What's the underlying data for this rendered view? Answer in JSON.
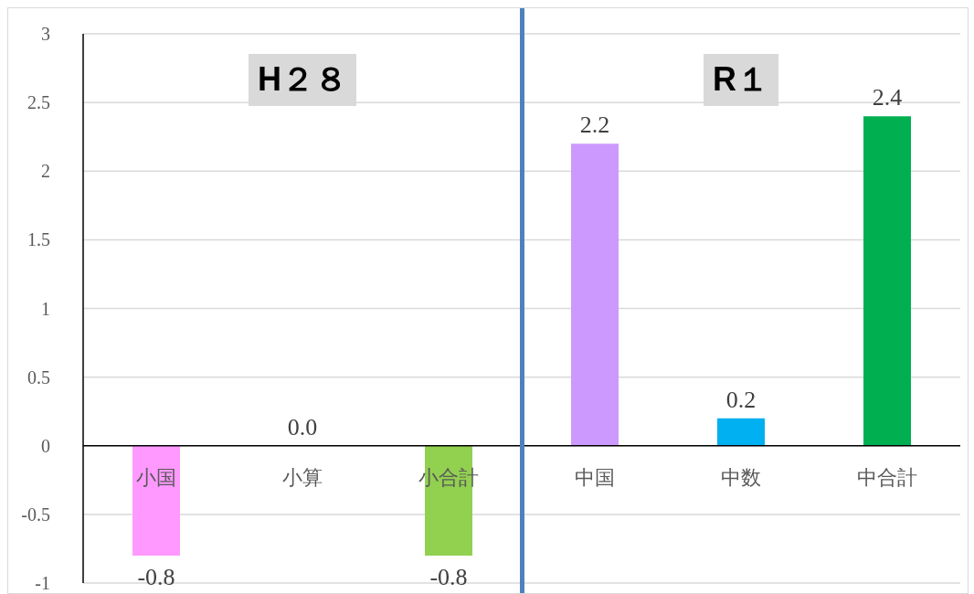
{
  "chart_data": {
    "type": "bar",
    "categories": [
      "小国",
      "小算",
      "小合計",
      "中国",
      "中数",
      "中合計"
    ],
    "values": [
      -0.8,
      0,
      -0.8,
      2.2,
      0.2,
      2.4
    ],
    "colors": [
      "#ff99ff",
      "#ffffff",
      "#92d050",
      "#cc99ff",
      "#00b0f0",
      "#00b050"
    ],
    "value_labels": [
      "-0.8",
      "0.0",
      "-0.8",
      "2.2",
      "0.2",
      "2.4"
    ],
    "ylim": [
      -1,
      3
    ],
    "yticks": [
      -1,
      -0.5,
      0,
      0.5,
      1,
      1.5,
      2,
      2.5,
      3
    ],
    "grid": "y",
    "annotations": [
      "H２８",
      "R１"
    ]
  }
}
